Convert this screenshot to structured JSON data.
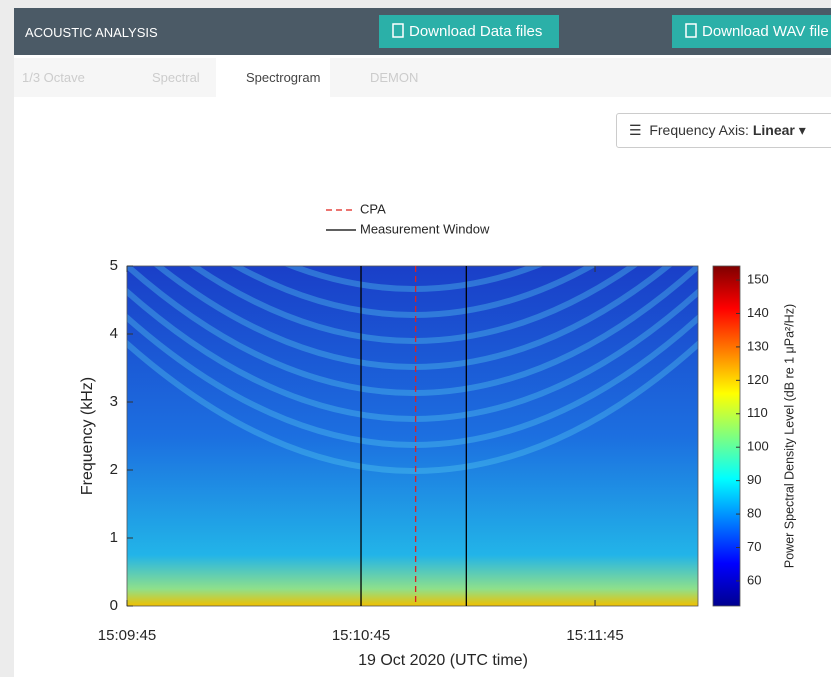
{
  "header": {
    "title": "ACOUSTIC ANALYSIS",
    "buttons": [
      "Download Data files",
      "Download WAV file"
    ]
  },
  "tabs": [
    "1/3 Octave",
    "Spectral",
    "Spectrogram",
    "DEMON"
  ],
  "active_tab": 2,
  "frequency_axis": {
    "label": "Frequency Axis:",
    "value": "Linear"
  },
  "chart_data": {
    "type": "spectrogram",
    "xlabel": "19 Oct 2020 (UTC time)",
    "ylabel": "Frequency (kHz)",
    "xlim": [
      54585,
      54731.4
    ],
    "xticks": [
      {
        "value": 54585,
        "label": "15:09:45"
      },
      {
        "value": 54645,
        "label": "15:10:45"
      },
      {
        "value": 54705,
        "label": "15:11:45"
      }
    ],
    "ylim": [
      0,
      5
    ],
    "yticks": [
      0,
      1,
      2,
      3,
      4,
      5
    ],
    "series": [
      {
        "name": "CPA",
        "color": "#e0201b",
        "style": "dashed",
        "x": [
          54659
        ]
      },
      {
        "name": "Measurement Window",
        "color": "#000000",
        "style": "solid",
        "x": [
          54645,
          54672
        ]
      }
    ],
    "colorbar": {
      "label": "Power Spectral Density Level (dB re 1 μPa²/Hz)",
      "colormap": "jet",
      "clim": [
        52.5,
        154.2
      ],
      "ticks": [
        60,
        70,
        80,
        90,
        100,
        110,
        120,
        130,
        140,
        150
      ]
    }
  }
}
